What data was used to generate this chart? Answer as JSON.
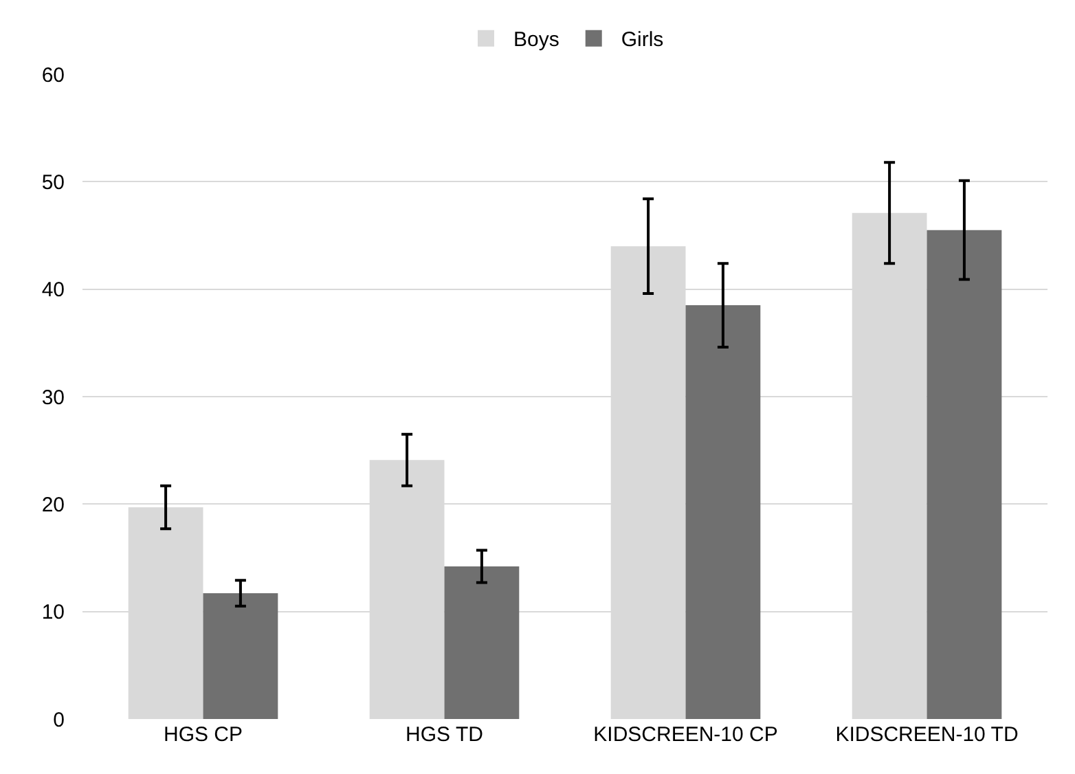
{
  "chart_data": {
    "type": "bar",
    "categories": [
      "HGS CP",
      "HGS TD",
      "KIDSCREEN-10 CP",
      "KIDSCREEN-10 TD"
    ],
    "series": [
      {
        "name": "Boys",
        "color": "#d9d9d9",
        "values": [
          19.7,
          24.1,
          44.0,
          47.1
        ],
        "errors": [
          2.0,
          2.4,
          4.4,
          4.7
        ]
      },
      {
        "name": "Girls",
        "color": "#707070",
        "values": [
          11.7,
          14.2,
          38.5,
          45.5
        ],
        "errors": [
          1.2,
          1.5,
          3.9,
          4.6
        ]
      }
    ],
    "ylim": [
      0,
      60
    ],
    "yticks": [
      0,
      10,
      20,
      30,
      40,
      50,
      60
    ],
    "grid": "y",
    "legend": "top"
  }
}
